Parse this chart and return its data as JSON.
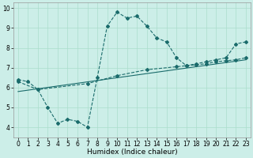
{
  "xlabel": "Humidex (Indice chaleur)",
  "background_color": "#cceee8",
  "line_color": "#1a6b6b",
  "xlim": [
    -0.5,
    23.5
  ],
  "ylim": [
    3.5,
    10.3
  ],
  "x_ticks": [
    0,
    1,
    2,
    3,
    4,
    5,
    6,
    7,
    8,
    9,
    10,
    11,
    12,
    13,
    14,
    15,
    16,
    17,
    18,
    19,
    20,
    21,
    22,
    23
  ],
  "y_ticks": [
    4,
    5,
    6,
    7,
    8,
    9,
    10
  ],
  "line1_x": [
    0,
    1,
    2,
    3,
    4,
    5,
    6,
    7,
    8,
    9,
    10,
    11,
    12,
    13,
    14,
    15,
    16,
    17,
    18,
    19,
    20,
    21,
    22,
    23
  ],
  "line1_y": [
    6.4,
    6.3,
    5.9,
    5.0,
    4.2,
    4.4,
    4.3,
    4.0,
    6.5,
    9.1,
    9.8,
    9.5,
    9.6,
    9.1,
    8.5,
    8.3,
    7.5,
    7.1,
    7.2,
    7.3,
    7.4,
    7.5,
    8.2,
    8.3
  ],
  "line2_x": [
    0,
    2,
    7,
    10,
    13,
    16,
    17,
    18,
    19,
    20,
    21,
    22,
    23
  ],
  "line2_y": [
    6.3,
    5.9,
    6.2,
    6.6,
    6.9,
    7.05,
    7.1,
    7.15,
    7.2,
    7.3,
    7.35,
    7.4,
    7.5
  ],
  "line3_x": [
    0,
    23
  ],
  "line3_y": [
    5.8,
    7.4
  ],
  "grid_color": "#aaddcc",
  "xlabel_fontsize": 6.5,
  "tick_fontsize": 5.5
}
